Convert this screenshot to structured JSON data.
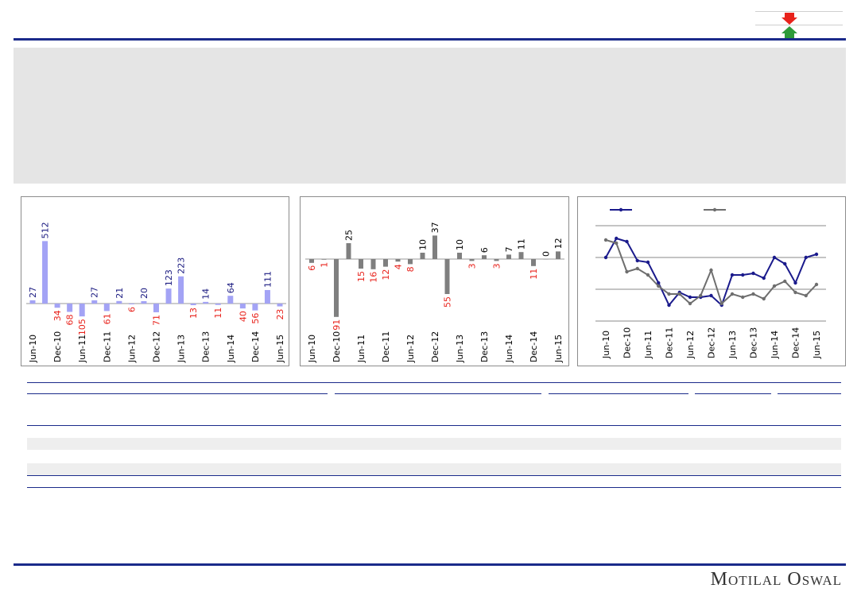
{
  "brand": "Motilal Oswal",
  "colors": {
    "accent_navy": "#1a2a8a",
    "arrow_down": "#e8221b",
    "arrow_up": "#2e9b3a",
    "bar_blue": "#a3a3f5",
    "bar_grey": "#7f7f7f",
    "label_pos": "#1a1a80",
    "label_neg": "#e8221b",
    "line_navy": "#1a1a8c",
    "line_grey": "#6e6e6e"
  },
  "header": {
    "down_arrow_icon": "red-down-arrow-icon",
    "up_arrow_icon": "green-up-arrow-icon"
  },
  "chart_data": [
    {
      "type": "bar",
      "categories": [
        "Jun-10",
        "Sep-10",
        "Dec-10",
        "Mar-11",
        "Jun-11",
        "Sep-11",
        "Dec-11",
        "Mar-12",
        "Jun-12",
        "Sep-12",
        "Dec-12",
        "Mar-13",
        "Jun-13",
        "Sep-13",
        "Dec-13",
        "Mar-14",
        "Jun-14",
        "Sep-14",
        "Dec-14",
        "Mar-15",
        "Jun-15"
      ],
      "tick_labels": [
        "Jun-10",
        "Dec-10",
        "Jun-11",
        "Dec-11",
        "Jun-12",
        "Dec-12",
        "Jun-13",
        "Dec-13",
        "Jun-14",
        "Dec-14",
        "Jun-15"
      ],
      "values": [
        27,
        512,
        -34,
        -68,
        -105,
        27,
        -61,
        21,
        -6,
        20,
        -71,
        123,
        223,
        -13,
        14,
        -11,
        64,
        -40,
        -56,
        111,
        -23
      ],
      "data_labels": [
        "27",
        "512",
        "34",
        "68",
        "105",
        "27",
        "61",
        "21",
        "6",
        "20",
        "71",
        "123",
        "223",
        "13",
        "14",
        "11",
        "64",
        "40",
        "56",
        "111",
        "23"
      ],
      "ylim": [
        -130,
        560
      ],
      "grid": false,
      "legend": "none"
    },
    {
      "type": "bar",
      "categories": [
        "Jun-10",
        "Sep-10",
        "Dec-10",
        "Mar-11",
        "Jun-11",
        "Sep-11",
        "Dec-11",
        "Mar-12",
        "Jun-12",
        "Sep-12",
        "Dec-12",
        "Mar-13",
        "Jun-13",
        "Sep-13",
        "Dec-13",
        "Mar-14",
        "Jun-14",
        "Sep-14",
        "Dec-14",
        "Mar-15",
        "Jun-15"
      ],
      "tick_labels": [
        "Jun-10",
        "Dec-10",
        "Jun-11",
        "Dec-11",
        "Jun-12",
        "Dec-12",
        "Jun-13",
        "Dec-13",
        "Jun-14",
        "Dec-14",
        "Jun-15"
      ],
      "values": [
        -6,
        -1,
        -91,
        25,
        -15,
        -16,
        -12,
        -4,
        -8,
        10,
        37,
        -55,
        10,
        -3,
        6,
        -3,
        7,
        11,
        -11,
        0,
        12
      ],
      "data_labels": [
        "6",
        "1",
        "91",
        "25",
        "15",
        "16",
        "12",
        "4",
        "8",
        "10",
        "37",
        "55",
        "10",
        "3",
        "6",
        "3",
        "7",
        "11",
        "11",
        "0",
        "12"
      ],
      "ylim": [
        -100,
        45
      ],
      "grid": false,
      "legend": "none"
    },
    {
      "type": "line",
      "x": [
        "Jun-10",
        "Sep-10",
        "Dec-10",
        "Mar-11",
        "Jun-11",
        "Sep-11",
        "Dec-11",
        "Mar-12",
        "Jun-12",
        "Sep-12",
        "Dec-12",
        "Mar-13",
        "Jun-13",
        "Sep-13",
        "Dec-13",
        "Mar-14",
        "Jun-14",
        "Sep-14",
        "Dec-14",
        "Mar-15",
        "Jun-15"
      ],
      "tick_labels": [
        "Jun-10",
        "Dec-10",
        "Jun-11",
        "Dec-11",
        "Jun-12",
        "Dec-12",
        "Jun-13",
        "Dec-13",
        "Jun-14",
        "Dec-14",
        "Jun-15"
      ],
      "series": [
        {
          "values": [
            3.0,
            3.6,
            3.5,
            2.9,
            2.85,
            2.2,
            1.5,
            1.9,
            1.75,
            1.75,
            1.8,
            1.5,
            2.45,
            2.45,
            2.5,
            2.35,
            3.0,
            2.8,
            2.2,
            3.0,
            3.1
          ]
        },
        {
          "values": [
            3.55,
            3.45,
            2.55,
            2.65,
            2.45,
            2.1,
            1.85,
            1.85,
            1.55,
            1.8,
            2.6,
            1.55,
            1.85,
            1.75,
            1.85,
            1.7,
            2.1,
            2.25,
            1.9,
            1.8,
            2.15
          ]
        }
      ],
      "ylim": [
        1.0,
        4.0
      ],
      "grid": true,
      "legend": "top-left"
    }
  ]
}
